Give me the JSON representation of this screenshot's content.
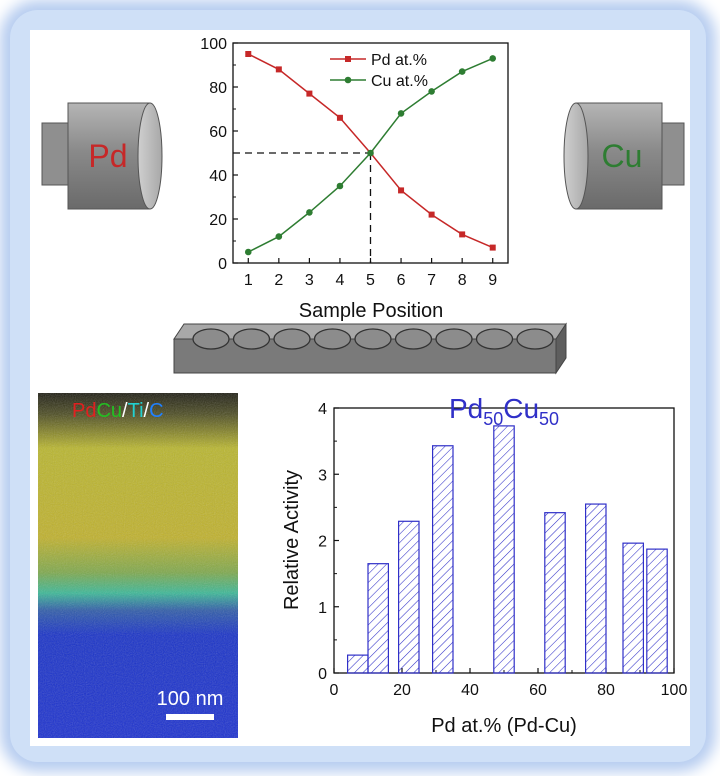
{
  "colors": {
    "pd_red": "#c62828",
    "cu_green": "#2e7d32",
    "bar_blue": "#3030c8",
    "frame_glow": "#b7cdf0"
  },
  "targets": {
    "left_label": "Pd",
    "right_label": "Cu"
  },
  "map_image": {
    "legend_pd": "Pd",
    "legend_cu": "Cu",
    "legend_sep1": "/",
    "legend_ti": "Ti",
    "legend_sep2": "/",
    "legend_c": "C",
    "scale_bar_label": "100 nm"
  },
  "chart_data": [
    {
      "type": "line",
      "xlabel": "Sample Position",
      "ylabel": "",
      "x": [
        1,
        2,
        3,
        4,
        5,
        6,
        7,
        8,
        9
      ],
      "xlim": [
        0.5,
        9.5
      ],
      "ylim": [
        0,
        100
      ],
      "yticks": [
        0,
        20,
        40,
        60,
        80,
        100
      ],
      "series": [
        {
          "name": "Pd at.%",
          "color": "#c62828",
          "marker": "square",
          "values": [
            95,
            88,
            77,
            66,
            50,
            33,
            22,
            13,
            7
          ]
        },
        {
          "name": "Cu at.%",
          "color": "#2e7d32",
          "marker": "circle",
          "values": [
            5,
            12,
            23,
            35,
            50,
            68,
            78,
            87,
            93
          ]
        }
      ],
      "annotations": [
        {
          "type": "dashed-crosshair",
          "x": 5,
          "y": 50
        }
      ],
      "legend": "top-center"
    },
    {
      "type": "bar",
      "title_main": "Pd",
      "title_sub1": "50",
      "title_mid": "Cu",
      "title_sub2": "50",
      "xlabel": "Pd at.% (Pd-Cu)",
      "ylabel": "Relative  Activity",
      "xlim": [
        0,
        100
      ],
      "ylim": [
        0,
        4
      ],
      "xticks": [
        0,
        20,
        40,
        60,
        80,
        100
      ],
      "yticks": [
        0,
        1,
        2,
        3,
        4
      ],
      "bars": [
        {
          "x": 7,
          "value": 0.27
        },
        {
          "x": 13,
          "value": 1.65
        },
        {
          "x": 22,
          "value": 2.29
        },
        {
          "x": 32,
          "value": 3.43
        },
        {
          "x": 50,
          "value": 3.73
        },
        {
          "x": 65,
          "value": 2.42
        },
        {
          "x": 77,
          "value": 2.55
        },
        {
          "x": 88,
          "value": 1.96
        },
        {
          "x": 95,
          "value": 1.87
        }
      ],
      "bar_width": 6
    }
  ]
}
